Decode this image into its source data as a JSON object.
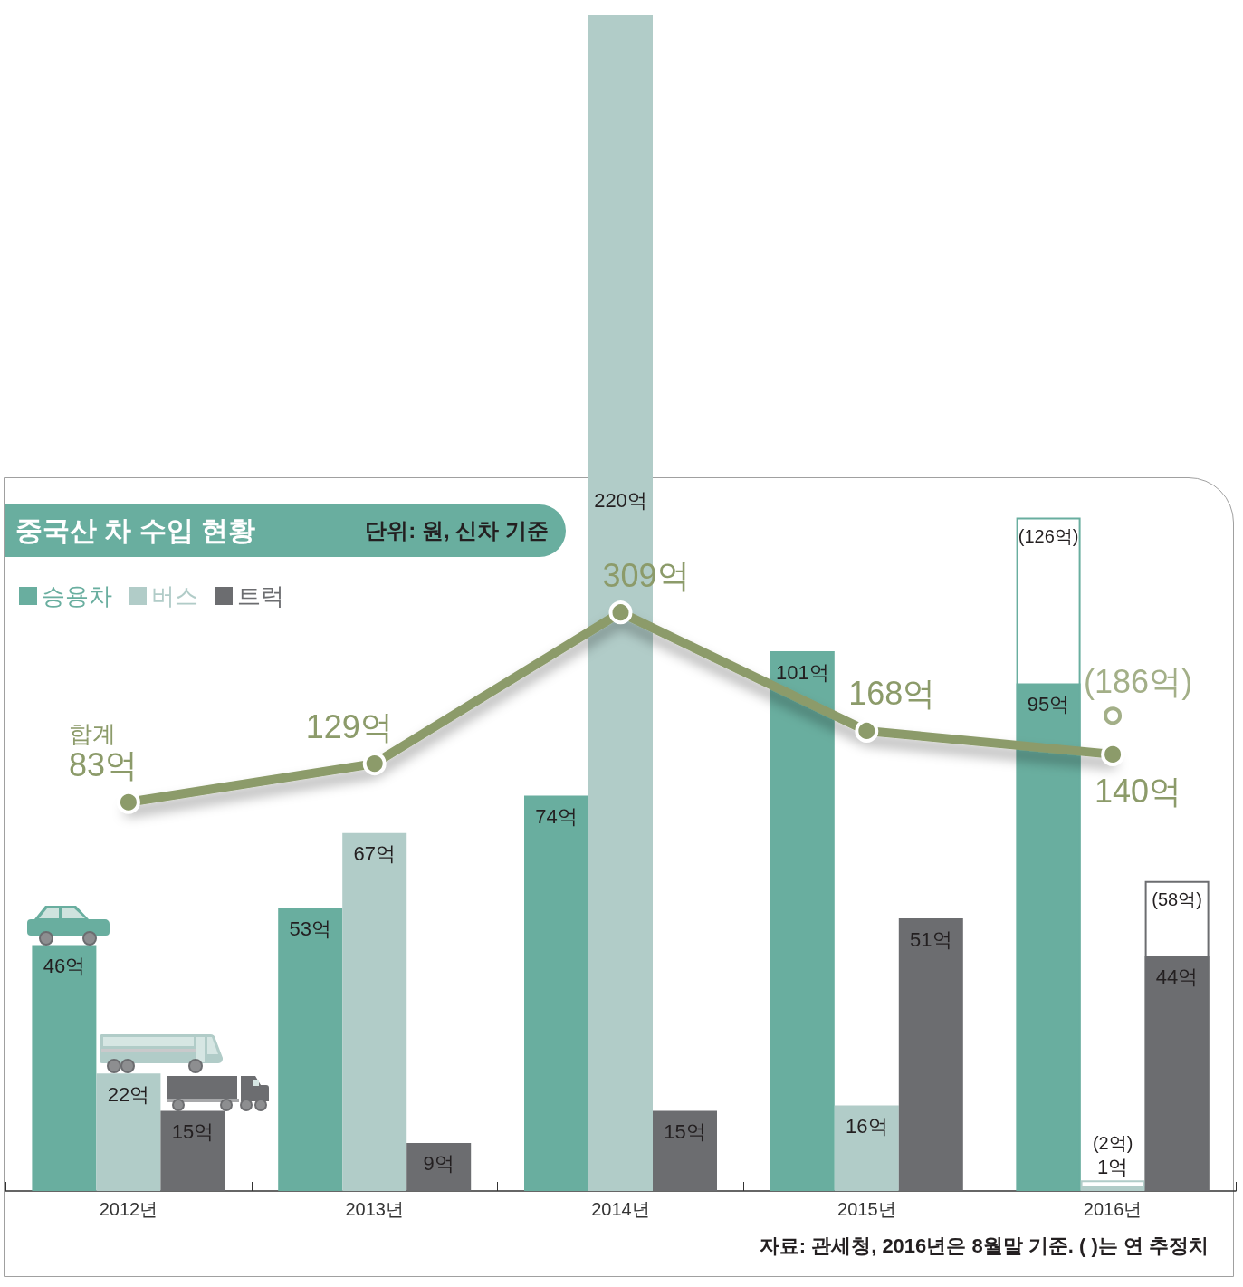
{
  "chart_data": {
    "type": "bar",
    "title": "중국산 차 수입 현황",
    "subtitle": "단위: 원, 신차 기준",
    "annotations": [
      "자료: 관세청, 2016년은 8월말 기준. ( )는 연 추정치"
    ],
    "categories": [
      "2012년",
      "2013년",
      "2014년",
      "2015년",
      "2016년"
    ],
    "series": [
      {
        "name": "승용차",
        "color": "#69ae9f",
        "values": [
          46,
          53,
          74,
          101,
          95
        ],
        "value_labels": [
          "46억",
          "53억",
          "74억",
          "101억",
          "95억"
        ]
      },
      {
        "name": "버스",
        "color": "#b1ccc8",
        "values": [
          22,
          67,
          220,
          16,
          1
        ],
        "value_labels": [
          "22억",
          "67억",
          "220억",
          "16억",
          "1억"
        ]
      },
      {
        "name": "트럭",
        "color": "#6c6d70",
        "values": [
          15,
          9,
          15,
          51,
          44
        ],
        "value_labels": [
          "15억",
          "9억",
          "15억",
          "51억",
          "44억"
        ]
      },
      {
        "color": "#69ae9f",
        "line_style": "solid",
        "values": [
          null,
          null,
          null,
          null,
          126
        ],
        "value_labels": [
          null,
          null,
          null,
          null,
          "(126억)"
        ]
      },
      {
        "color": "#b1ccc8",
        "line_style": "solid",
        "values": [
          null,
          null,
          null,
          null,
          2
        ],
        "value_labels": [
          null,
          null,
          null,
          null,
          "(2억)"
        ]
      },
      {
        "color": "#6c6d70",
        "line_style": "solid",
        "values": [
          null,
          null,
          null,
          null,
          58
        ],
        "value_labels": [
          null,
          null,
          null,
          null,
          "(58억)"
        ]
      },
      {
        "name": "합계",
        "type": "line",
        "axis": "y2",
        "color": "#8c9b6a",
        "values": [
          83,
          129,
          309,
          168,
          140
        ],
        "value_labels": [
          "83억",
          "129억",
          "309억",
          "168억",
          "140억"
        ]
      },
      {
        "type": "scatter",
        "axis": "y2",
        "color": "#8c9b6a",
        "values": [
          null,
          null,
          null,
          null,
          186
        ],
        "value_labels": [
          null,
          null,
          null,
          null,
          "(186억)"
        ]
      }
    ],
    "ylim": [
      0,
      220
    ],
    "y2lim": [
      -380,
      1020
    ],
    "tick_labels": "x",
    "legend": "top left",
    "grid": false,
    "marker": "circle"
  }
}
